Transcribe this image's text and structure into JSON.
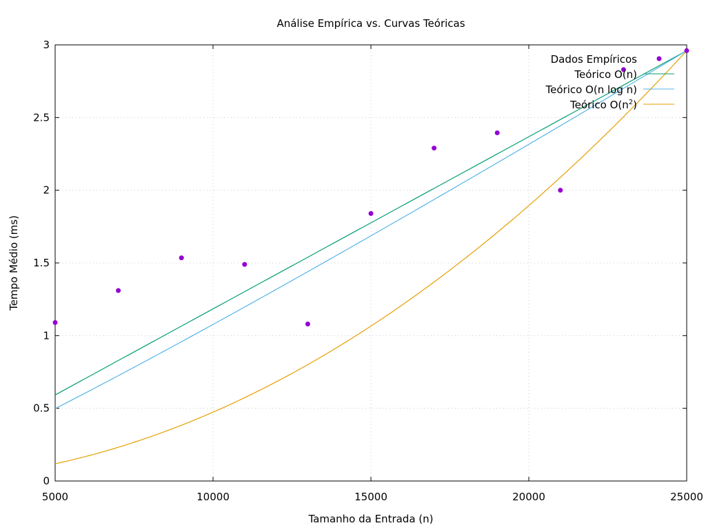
{
  "chart_data": {
    "type": "scatter+line",
    "title": "Análise Empírica vs. Curvas Teóricas",
    "xlabel": "Tamanho da Entrada (n)",
    "ylabel": "Tempo Médio (ms)",
    "xlim": [
      5000,
      25000
    ],
    "ylim": [
      0,
      3
    ],
    "xticks": [
      5000,
      10000,
      15000,
      20000,
      25000
    ],
    "yticks": [
      0,
      0.5,
      1,
      1.5,
      2,
      2.5,
      3
    ],
    "xtick_labels": [
      "5000",
      "10000",
      "15000",
      "20000",
      "25000"
    ],
    "ytick_labels": [
      "0",
      "0.5",
      "1",
      "1.5",
      "2",
      "2.5",
      "3"
    ],
    "grid": true,
    "legend_position": "top-right",
    "empirical": {
      "name": "Dados Empíricos",
      "color": "#9400d3",
      "x": [
        5000,
        7000,
        9000,
        11000,
        13000,
        15000,
        17000,
        19000,
        21000,
        23000,
        25000
      ],
      "y": [
        1.09,
        1.31,
        1.535,
        1.49,
        1.08,
        1.84,
        2.29,
        2.395,
        2.0,
        2.83,
        2.96
      ]
    },
    "theoretical": [
      {
        "name_main": "Teórico O(n)",
        "name_sup": "",
        "name_tail": "",
        "model": "n",
        "color": "#009e73"
      },
      {
        "name_main": "Teórico O(n log n)",
        "name_sup": "",
        "name_tail": "",
        "model": "nlogn",
        "color": "#56b4e9"
      },
      {
        "name_main": "Teórico O(n",
        "name_sup": "2",
        "name_tail": ")",
        "model": "n2",
        "color": "#e69f00"
      }
    ],
    "reference_point": {
      "x": 25000,
      "y": 2.96
    }
  }
}
